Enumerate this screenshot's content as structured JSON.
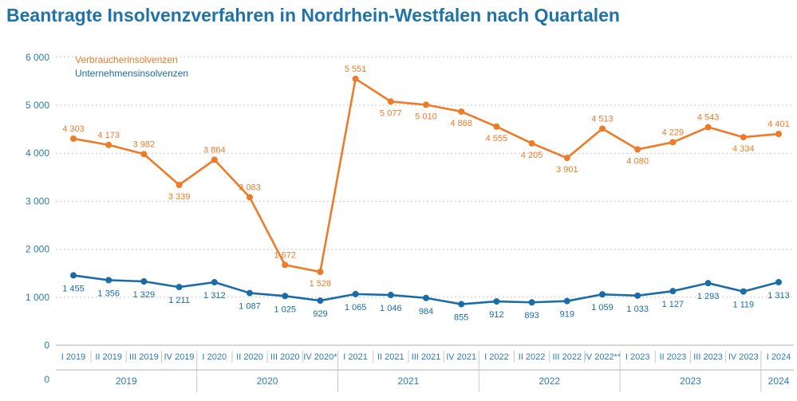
{
  "title": "Beantragte Insolvenzverfahren in Nordrhein-Westfalen nach Quartalen",
  "colors": {
    "consumer": "#ee7b28",
    "business": "#1a6ca8",
    "axis_text": "#2b7ab8",
    "grid": "#c8c8c8"
  },
  "chart_data": {
    "type": "line",
    "title": "Beantragte Insolvenzverfahren in Nordrhein-Westfalen nach Quartalen",
    "categories": [
      "I 2019",
      "II 2019",
      "III 2019",
      "IV 2019",
      "I 2020",
      "II 2020",
      "III 2020",
      "IV 2020*",
      "I 2021",
      "II 2021",
      "III 2021",
      "IV 2021",
      "I 2022",
      "II 2022",
      "III 2022",
      "IV 2022**",
      "I 2023",
      "II 2023",
      "III 2023",
      "IV 2023",
      "I 2024"
    ],
    "years": [
      "2019",
      "2020",
      "2021",
      "2022",
      "2023",
      "2024"
    ],
    "series": [
      {
        "name": "Verbraucherinsolvenzen",
        "values": [
          4303,
          4173,
          3982,
          3339,
          3864,
          3083,
          1672,
          1528,
          5551,
          5077,
          5010,
          4868,
          4555,
          4205,
          3901,
          4513,
          4080,
          4229,
          4543,
          4334,
          4401
        ],
        "labels": [
          "4 303",
          "4 173",
          "3 982",
          "3 339",
          "3 864",
          "3 083",
          "1 672",
          "1 528",
          "5 551",
          "5 077",
          "5 010",
          "4 868",
          "4 555",
          "4 205",
          "3 901",
          "4 513",
          "4 080",
          "4 229",
          "4 543",
          "4 334",
          "4 401"
        ]
      },
      {
        "name": "Unternehmensinsolvenzen",
        "values": [
          1455,
          1356,
          1329,
          1211,
          1312,
          1087,
          1025,
          929,
          1065,
          1046,
          984,
          855,
          912,
          893,
          919,
          1059,
          1033,
          1127,
          1293,
          1119,
          1313
        ],
        "labels": [
          "1 455",
          "1 356",
          "1 329",
          "1 211",
          "1 312",
          "1 087",
          "1 025",
          "929",
          "1 065",
          "1 046",
          "984",
          "855",
          "912",
          "893",
          "919",
          "1 059",
          "1 033",
          "1 127",
          "1 293",
          "1 119",
          "1 313"
        ]
      }
    ],
    "yticks": [
      "6 000",
      "5 000",
      "4 000",
      "3 000",
      "2 000",
      "1 000",
      "0"
    ],
    "ylim": [
      0,
      6000
    ],
    "axis_break_label": "0",
    "grid": true,
    "legend": "top-left"
  }
}
